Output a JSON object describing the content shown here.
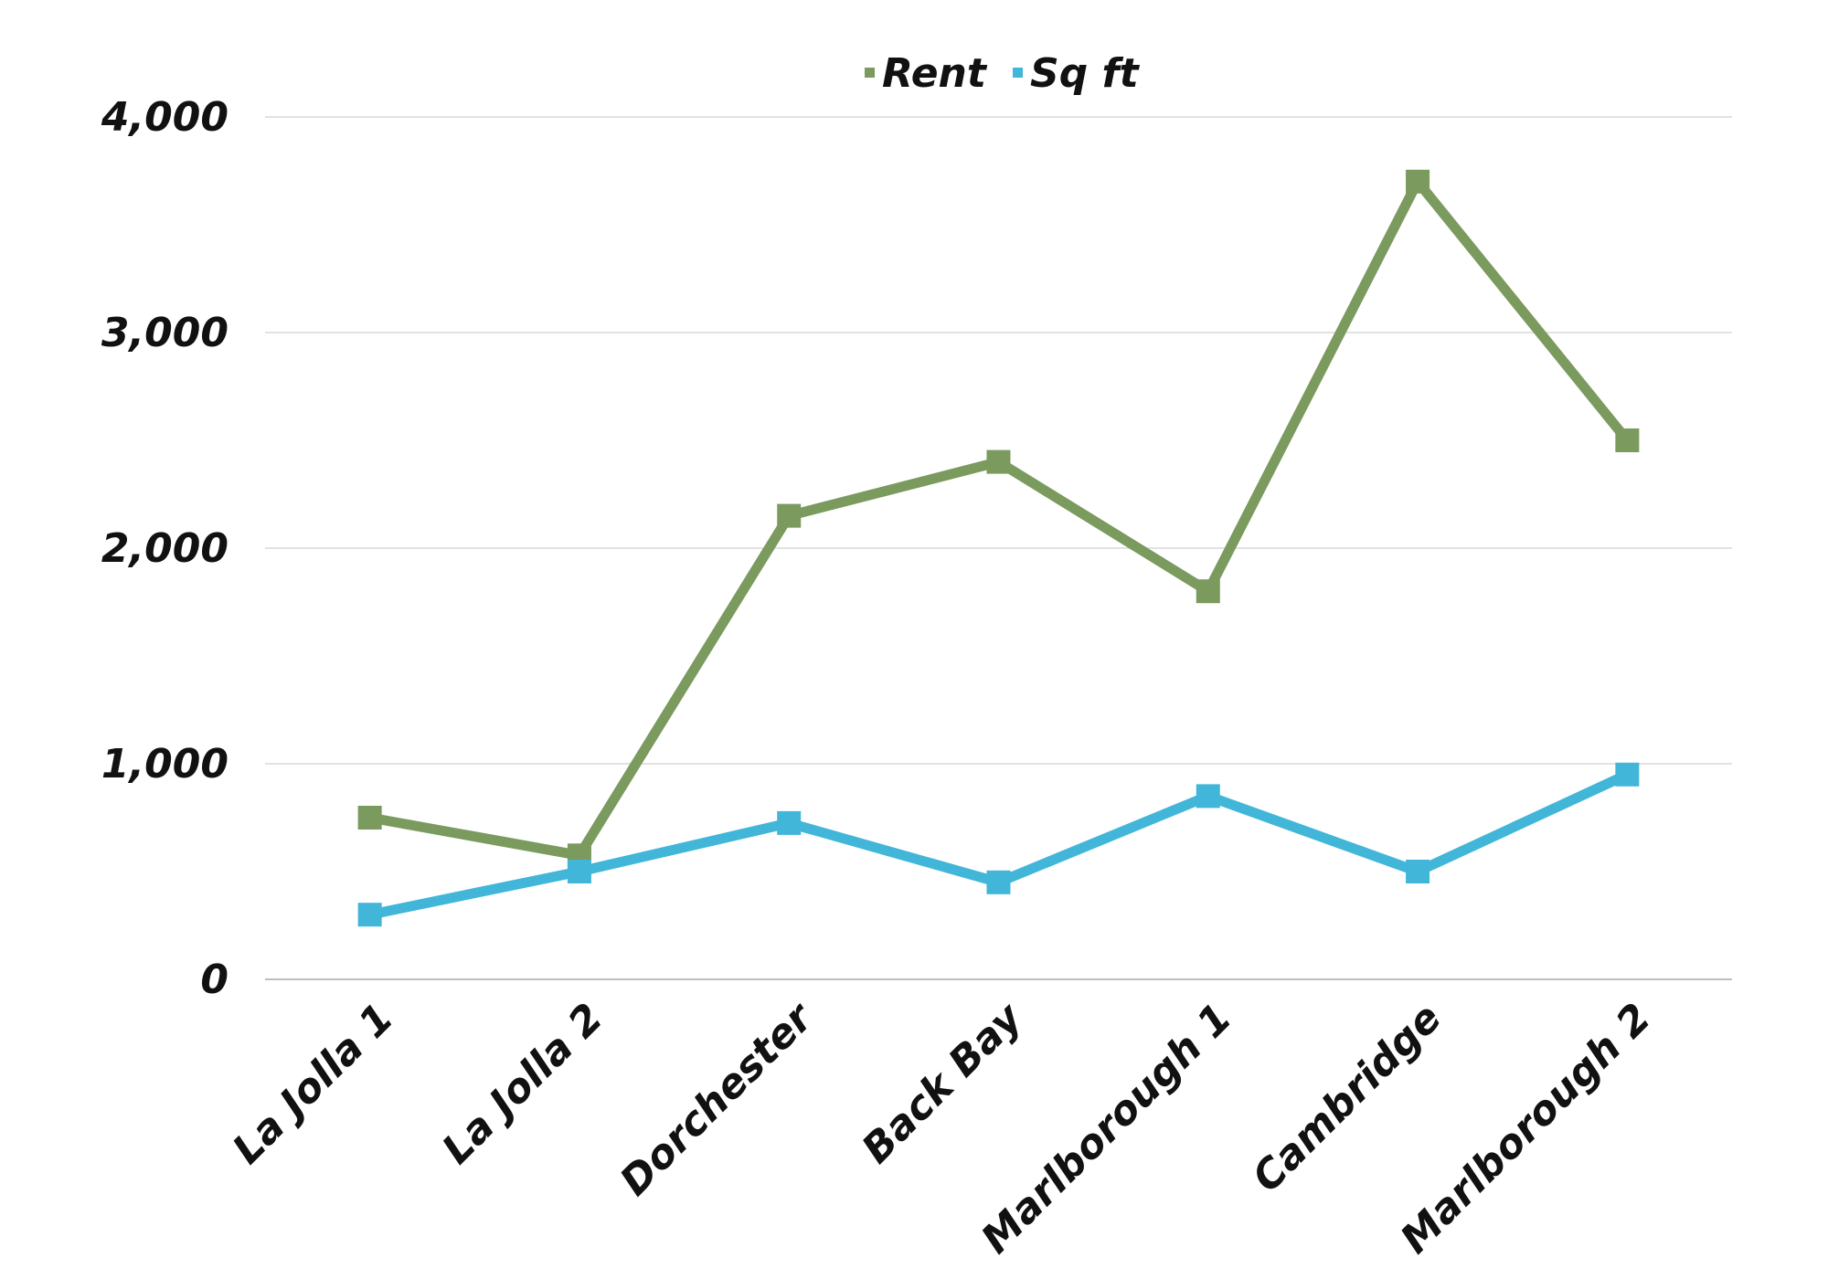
{
  "chart_data": {
    "type": "line",
    "title": "",
    "xlabel": "",
    "ylabel": "",
    "categories": [
      "La Jolla 1",
      "La Jolla 2",
      "Dorchester",
      "Back Bay",
      "Marlborough 1",
      "Cambridge",
      "Marlborough 2"
    ],
    "series": [
      {
        "name": "Rent",
        "color": "#7a9a5e",
        "values": [
          750,
          575,
          2150,
          2400,
          1800,
          3700,
          2500
        ]
      },
      {
        "name": "Sq ft",
        "color": "#41b6d8",
        "values": [
          300,
          500,
          725,
          450,
          850,
          500,
          950
        ]
      }
    ],
    "ylim": [
      0,
      4000
    ],
    "yticks": [
      0,
      1000,
      2000,
      3000,
      4000
    ],
    "ytick_labels": [
      "0",
      "1,000",
      "2,000",
      "3,000",
      "4,000"
    ],
    "grid": true,
    "legend_position": "top-center",
    "marker": "square"
  }
}
